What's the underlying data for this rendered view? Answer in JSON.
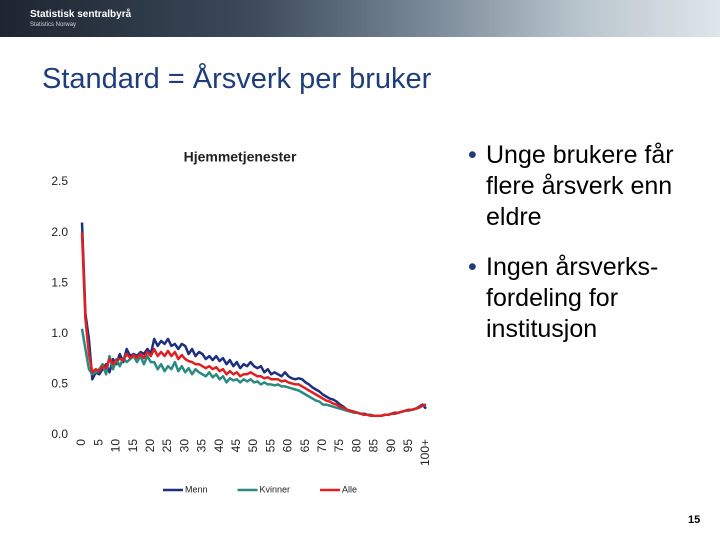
{
  "header": {
    "logo": "Statistisk sentralbyrå",
    "logo_sub": "Statistics Norway"
  },
  "slide": {
    "title": "Standard = Årsverk per bruker",
    "bullets": [
      "Unge brukere får flere årsverk enn eldre",
      "Ingen årsverks-fordeling for institusjon"
    ],
    "page_number": "15"
  },
  "chart_data": {
    "type": "line",
    "title": "Hjemmetjenester",
    "x": [
      0,
      1,
      2,
      3,
      4,
      5,
      6,
      7,
      8,
      9,
      10,
      11,
      12,
      13,
      14,
      15,
      16,
      17,
      18,
      19,
      20,
      21,
      22,
      23,
      24,
      25,
      26,
      27,
      28,
      29,
      30,
      31,
      32,
      33,
      34,
      35,
      36,
      37,
      38,
      39,
      40,
      41,
      42,
      43,
      44,
      45,
      46,
      47,
      48,
      49,
      50,
      51,
      52,
      53,
      54,
      55,
      56,
      57,
      58,
      59,
      60,
      61,
      62,
      63,
      64,
      65,
      66,
      67,
      68,
      69,
      70,
      71,
      72,
      73,
      74,
      75,
      76,
      77,
      78,
      79,
      80,
      81,
      82,
      83,
      84,
      85,
      86,
      87,
      88,
      89,
      90,
      91,
      92,
      93,
      94,
      95,
      96,
      97,
      98,
      99,
      100
    ],
    "xlim": [
      0,
      100
    ],
    "xticks": [
      0,
      5,
      10,
      15,
      20,
      25,
      30,
      35,
      40,
      45,
      50,
      55,
      60,
      65,
      70,
      75,
      80,
      85,
      90,
      95,
      {
        "value": 100,
        "label": "100+"
      }
    ],
    "ylim": [
      0,
      2.5
    ],
    "yticks": [
      {
        "value": 0,
        "label": "0.0"
      },
      0.5,
      {
        "value": 1,
        "label": "1.0"
      },
      1.5,
      {
        "value": 2,
        "label": "2.0"
      },
      2.5
    ],
    "grid": false,
    "legend": "bottom",
    "series": [
      {
        "name": "Menn",
        "color": "#1f2f80",
        "values": [
          2.1,
          1.2,
          0.95,
          0.55,
          0.62,
          0.6,
          0.65,
          0.7,
          0.62,
          0.75,
          0.7,
          0.8,
          0.72,
          0.85,
          0.78,
          0.8,
          0.78,
          0.82,
          0.8,
          0.85,
          0.8,
          0.95,
          0.88,
          0.93,
          0.9,
          0.95,
          0.88,
          0.9,
          0.85,
          0.9,
          0.88,
          0.8,
          0.85,
          0.78,
          0.82,
          0.8,
          0.75,
          0.78,
          0.74,
          0.78,
          0.73,
          0.76,
          0.7,
          0.74,
          0.68,
          0.72,
          0.66,
          0.7,
          0.68,
          0.72,
          0.68,
          0.66,
          0.68,
          0.62,
          0.65,
          0.6,
          0.62,
          0.6,
          0.58,
          0.62,
          0.58,
          0.56,
          0.55,
          0.56,
          0.55,
          0.52,
          0.5,
          0.47,
          0.45,
          0.43,
          0.4,
          0.38,
          0.36,
          0.35,
          0.33,
          0.3,
          0.28,
          0.25,
          0.24,
          0.23,
          0.22,
          0.21,
          0.21,
          0.2,
          0.19,
          0.19,
          0.19,
          0.19,
          0.2,
          0.2,
          0.21,
          0.22,
          0.22,
          0.23,
          0.24,
          0.25,
          0.25,
          0.26,
          0.28,
          0.3,
          0.26
        ]
      },
      {
        "name": "Kvinner",
        "color": "#2a8a80",
        "values": [
          1.05,
          0.85,
          0.65,
          0.6,
          0.62,
          0.65,
          0.7,
          0.6,
          0.78,
          0.65,
          0.75,
          0.68,
          0.76,
          0.72,
          0.75,
          0.78,
          0.72,
          0.78,
          0.7,
          0.78,
          0.72,
          0.72,
          0.65,
          0.7,
          0.63,
          0.68,
          0.65,
          0.72,
          0.63,
          0.68,
          0.62,
          0.66,
          0.6,
          0.65,
          0.62,
          0.6,
          0.58,
          0.62,
          0.57,
          0.6,
          0.55,
          0.58,
          0.52,
          0.56,
          0.54,
          0.55,
          0.52,
          0.55,
          0.53,
          0.55,
          0.52,
          0.53,
          0.5,
          0.52,
          0.5,
          0.5,
          0.49,
          0.5,
          0.48,
          0.48,
          0.47,
          0.46,
          0.45,
          0.44,
          0.42,
          0.4,
          0.38,
          0.36,
          0.34,
          0.33,
          0.3,
          0.3,
          0.29,
          0.28,
          0.27,
          0.26,
          0.25,
          0.24,
          0.23,
          0.22,
          0.22,
          0.21,
          0.2,
          0.2,
          0.2,
          0.19,
          0.19,
          0.19,
          0.2,
          0.2,
          0.21,
          0.21,
          0.22,
          0.23,
          0.24,
          0.24,
          0.25,
          0.26,
          0.27,
          0.29,
          0.3
        ]
      },
      {
        "name": "Alle",
        "color": "#e02020",
        "values": [
          2.0,
          1.15,
          0.8,
          0.62,
          0.65,
          0.63,
          0.68,
          0.66,
          0.75,
          0.7,
          0.74,
          0.75,
          0.74,
          0.8,
          0.76,
          0.79,
          0.76,
          0.8,
          0.76,
          0.82,
          0.78,
          0.85,
          0.78,
          0.82,
          0.78,
          0.83,
          0.78,
          0.82,
          0.75,
          0.79,
          0.75,
          0.73,
          0.72,
          0.7,
          0.7,
          0.68,
          0.66,
          0.68,
          0.65,
          0.67,
          0.63,
          0.65,
          0.6,
          0.63,
          0.6,
          0.62,
          0.58,
          0.6,
          0.6,
          0.62,
          0.6,
          0.58,
          0.58,
          0.56,
          0.57,
          0.55,
          0.55,
          0.55,
          0.53,
          0.54,
          0.52,
          0.51,
          0.5,
          0.5,
          0.48,
          0.46,
          0.44,
          0.42,
          0.4,
          0.38,
          0.36,
          0.34,
          0.33,
          0.31,
          0.3,
          0.28,
          0.27,
          0.25,
          0.24,
          0.23,
          0.22,
          0.21,
          0.2,
          0.2,
          0.19,
          0.19,
          0.19,
          0.19,
          0.2,
          0.2,
          0.21,
          0.21,
          0.22,
          0.23,
          0.24,
          0.25,
          0.25,
          0.26,
          0.27,
          0.29,
          0.3
        ]
      }
    ]
  }
}
